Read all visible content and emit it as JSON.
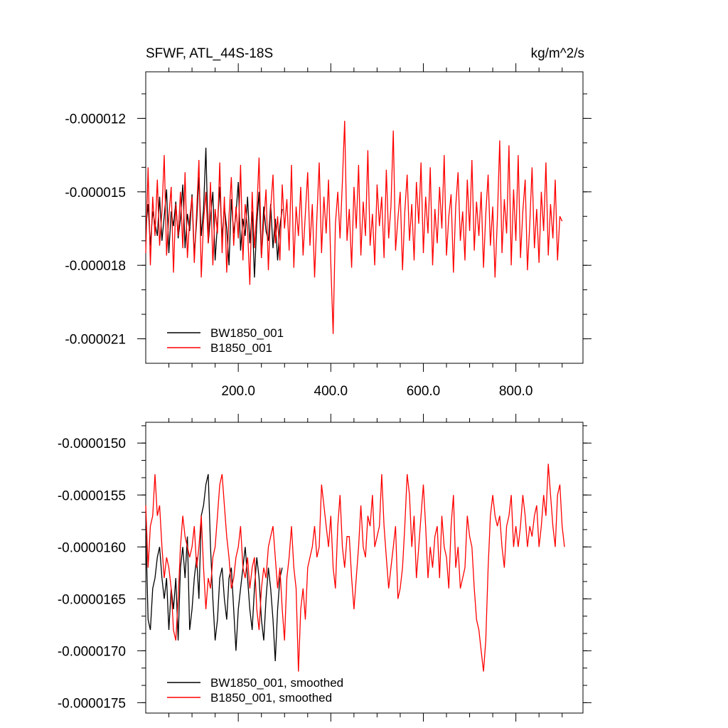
{
  "chart_data": [
    {
      "type": "line",
      "title_left": "SFWF, ATL_44S-18S",
      "title_right": "kg/m^2/s",
      "xlim": [
        0,
        945
      ],
      "ylim": [
        -2.2e-05,
        -1.01e-05
      ],
      "x_ticks": [
        200,
        400,
        600,
        800
      ],
      "x_tick_labels": [
        "200.0",
        "400.0",
        "600.0",
        "800.0"
      ],
      "y_ticks": [
        -1.2e-05,
        -1.5e-05,
        -1.8e-05,
        -2.1e-05
      ],
      "y_tick_labels": [
        "-0.000012",
        "-0.000015",
        "-0.000018",
        "-0.000021"
      ],
      "legend_position": "bottom-left",
      "series": [
        {
          "name": "BW1850_001",
          "color": "#000000",
          "x_step": 5,
          "values": [
            -1.65e-05,
            -1.55e-05,
            -1.72e-05,
            -1.58e-05,
            -1.63e-05,
            -1.68e-05,
            -1.52e-05,
            -1.7e-05,
            -1.6e-05,
            -1.49e-05,
            -1.75e-05,
            -1.58e-05,
            -1.64e-05,
            -1.54e-05,
            -1.69e-05,
            -1.61e-05,
            -1.47e-05,
            -1.73e-05,
            -1.59e-05,
            -1.66e-05,
            -1.51e-05,
            -1.76e-05,
            -1.62e-05,
            -1.44e-05,
            -1.68e-05,
            -1.57e-05,
            -1.32e-05,
            -1.71e-05,
            -1.6e-05,
            -1.5e-05,
            -1.78e-05,
            -1.63e-05,
            -1.48e-05,
            -1.69e-05,
            -1.56e-05,
            -1.65e-05,
            -1.8e-05,
            -1.53e-05,
            -1.67e-05,
            -1.59e-05,
            -1.46e-05,
            -1.74e-05,
            -1.61e-05,
            -1.68e-05,
            -1.52e-05,
            -1.71e-05,
            -1.58e-05,
            -1.85e-05,
            -1.63e-05,
            -1.5e-05,
            -1.77e-05,
            -1.56e-05,
            -1.66e-05,
            -1.7e-05,
            -1.55e-05,
            -1.73e-05,
            -1.61e-05,
            -1.78e-05,
            -1.64e-05,
            -1.57e-05
          ]
        },
        {
          "name": "B1850_001",
          "color": "#ff0000",
          "x_step": 5,
          "values": [
            -1.75e-05,
            -1.4e-05,
            -1.8e-05,
            -1.52e-05,
            -1.68e-05,
            -1.45e-05,
            -1.72e-05,
            -1.58e-05,
            -1.35e-05,
            -1.76e-05,
            -1.6e-05,
            -1.48e-05,
            -1.83e-05,
            -1.55e-05,
            -1.68e-05,
            -1.5e-05,
            -1.73e-05,
            -1.42e-05,
            -1.77e-05,
            -1.61e-05,
            -1.52e-05,
            -1.79e-05,
            -1.58e-05,
            -1.37e-05,
            -1.85e-05,
            -1.62e-05,
            -1.5e-05,
            -1.71e-05,
            -1.46e-05,
            -1.8e-05,
            -1.57e-05,
            -1.67e-05,
            -1.38e-05,
            -1.75e-05,
            -1.52e-05,
            -1.83e-05,
            -1.6e-05,
            -1.44e-05,
            -1.72e-05,
            -1.56e-05,
            -1.69e-05,
            -1.39e-05,
            -1.78e-05,
            -1.55e-05,
            -1.65e-05,
            -1.88e-05,
            -1.5e-05,
            -1.73e-05,
            -1.58e-05,
            -1.36e-05,
            -1.77e-05,
            -1.62e-05,
            -1.49e-05,
            -1.82e-05,
            -1.57e-05,
            -1.43e-05,
            -1.71e-05,
            -1.6e-05,
            -1.78e-05,
            -1.47e-05,
            -1.65e-05,
            -1.53e-05,
            -1.74e-05,
            -1.39e-05,
            -1.81e-05,
            -1.56e-05,
            -1.68e-05,
            -1.48e-05,
            -1.76e-05,
            -1.59e-05,
            -1.42e-05,
            -1.72e-05,
            -1.55e-05,
            -1.85e-05,
            -1.6e-05,
            -1.38e-05,
            -1.75e-05,
            -1.52e-05,
            -1.67e-05,
            -1.45e-05,
            -1.79e-05,
            -2.08e-05,
            -1.63e-05,
            -1.5e-05,
            -1.69e-05,
            -1.46e-05,
            -1.21e-05,
            -1.7e-05,
            -1.57e-05,
            -1.81e-05,
            -1.48e-05,
            -1.65e-05,
            -1.39e-05,
            -1.76e-05,
            -1.54e-05,
            -1.68e-05,
            -1.33e-05,
            -1.72e-05,
            -1.59e-05,
            -1.8e-05,
            -1.47e-05,
            -1.64e-05,
            -1.52e-05,
            -1.77e-05,
            -1.41e-05,
            -1.69e-05,
            -1.56e-05,
            -1.25e-05,
            -1.74e-05,
            -1.61e-05,
            -1.5e-05,
            -1.82e-05,
            -1.58e-05,
            -1.43e-05,
            -1.7e-05,
            -1.55e-05,
            -1.78e-05,
            -1.46e-05,
            -1.63e-05,
            -1.38e-05,
            -1.75e-05,
            -1.52e-05,
            -1.67e-05,
            -1.4e-05,
            -1.8e-05,
            -1.57e-05,
            -1.71e-05,
            -1.48e-05,
            -1.65e-05,
            -1.35e-05,
            -1.76e-05,
            -1.6e-05,
            -1.51e-05,
            -1.83e-05,
            -1.56e-05,
            -1.42e-05,
            -1.7e-05,
            -1.58e-05,
            -1.78e-05,
            -1.45e-05,
            -1.66e-05,
            -1.37e-05,
            -1.74e-05,
            -1.54e-05,
            -1.68e-05,
            -1.5e-05,
            -1.81e-05,
            -1.59e-05,
            -1.43e-05,
            -1.72e-05,
            -1.56e-05,
            -1.85e-05,
            -1.61e-05,
            -1.29e-05,
            -1.75e-05,
            -1.53e-05,
            -1.67e-05,
            -1.31e-05,
            -1.8e-05,
            -1.49e-05,
            -1.7e-05,
            -1.35e-05,
            -1.77e-05,
            -1.58e-05,
            -1.45e-05,
            -1.82e-05,
            -1.63e-05,
            -1.4e-05,
            -1.73e-05,
            -1.57e-05,
            -1.79e-05,
            -1.5e-05,
            -1.66e-05,
            -1.38e-05,
            -1.76e-05,
            -1.55e-05,
            -1.69e-05,
            -1.45e-05,
            -1.78e-05,
            -1.6e-05,
            -1.62e-05
          ]
        }
      ]
    },
    {
      "type": "line",
      "xlim": [
        0,
        945
      ],
      "ylim": [
        -1.76e-05,
        -1.48e-05
      ],
      "y_ticks": [
        -1.5e-05,
        -1.55e-05,
        -1.6e-05,
        -1.65e-05,
        -1.7e-05,
        -1.75e-05
      ],
      "y_tick_labels": [
        "-0.0000150",
        "-0.0000155",
        "-0.0000160",
        "-0.0000165",
        "-0.0000170",
        "-0.0000175"
      ],
      "legend_position": "bottom-left",
      "series": [
        {
          "name": "BW1850_001, smoothed",
          "color": "#000000",
          "x_step": 5,
          "values": [
            -1.58e-05,
            -1.67e-05,
            -1.68e-05,
            -1.64e-05,
            -1.63e-05,
            -1.61e-05,
            -1.6e-05,
            -1.63e-05,
            -1.65e-05,
            -1.63e-05,
            -1.68e-05,
            -1.64e-05,
            -1.66e-05,
            -1.63e-05,
            -1.69e-05,
            -1.62e-05,
            -1.6e-05,
            -1.63e-05,
            -1.59e-05,
            -1.68e-05,
            -1.66e-05,
            -1.63e-05,
            -1.61e-05,
            -1.65e-05,
            -1.57e-05,
            -1.56e-05,
            -1.54e-05,
            -1.53e-05,
            -1.6e-05,
            -1.65e-05,
            -1.69e-05,
            -1.67e-05,
            -1.63e-05,
            -1.62e-05,
            -1.65e-05,
            -1.67e-05,
            -1.63e-05,
            -1.62e-05,
            -1.66e-05,
            -1.7e-05,
            -1.66e-05,
            -1.64e-05,
            -1.62e-05,
            -1.6e-05,
            -1.63e-05,
            -1.66e-05,
            -1.68e-05,
            -1.64e-05,
            -1.61e-05,
            -1.63e-05,
            -1.67e-05,
            -1.69e-05,
            -1.65e-05,
            -1.62e-05,
            -1.64e-05,
            -1.67e-05,
            -1.71e-05,
            -1.66e-05,
            -1.63e-05,
            -1.62e-05
          ]
        },
        {
          "name": "B1850_001, smoothed",
          "color": "#ff0000",
          "x_step": 5,
          "values": [
            -1.56e-05,
            -1.62e-05,
            -1.58e-05,
            -1.57e-05,
            -1.53e-05,
            -1.57e-05,
            -1.56e-05,
            -1.6e-05,
            -1.63e-05,
            -1.61e-05,
            -1.62e-05,
            -1.64e-05,
            -1.68e-05,
            -1.69e-05,
            -1.65e-05,
            -1.6e-05,
            -1.57e-05,
            -1.59e-05,
            -1.6e-05,
            -1.61e-05,
            -1.6e-05,
            -1.58e-05,
            -1.62e-05,
            -1.6e-05,
            -1.57e-05,
            -1.62e-05,
            -1.66e-05,
            -1.63e-05,
            -1.64e-05,
            -1.61e-05,
            -1.6e-05,
            -1.57e-05,
            -1.54e-05,
            -1.53e-05,
            -1.56e-05,
            -1.59e-05,
            -1.61e-05,
            -1.64e-05,
            -1.63e-05,
            -1.61e-05,
            -1.6e-05,
            -1.58e-05,
            -1.62e-05,
            -1.63e-05,
            -1.61e-05,
            -1.64e-05,
            -1.62e-05,
            -1.61e-05,
            -1.66e-05,
            -1.68e-05,
            -1.64e-05,
            -1.62e-05,
            -1.63e-05,
            -1.6e-05,
            -1.59e-05,
            -1.58e-05,
            -1.61e-05,
            -1.64e-05,
            -1.62e-05,
            -1.66e-05,
            -1.69e-05,
            -1.63e-05,
            -1.61e-05,
            -1.58e-05,
            -1.62e-05,
            -1.64e-05,
            -1.72e-05,
            -1.66e-05,
            -1.64e-05,
            -1.67e-05,
            -1.62e-05,
            -1.61e-05,
            -1.6e-05,
            -1.58e-05,
            -1.61e-05,
            -1.6e-05,
            -1.54e-05,
            -1.56e-05,
            -1.58e-05,
            -1.6e-05,
            -1.57e-05,
            -1.62e-05,
            -1.64e-05,
            -1.58e-05,
            -1.55e-05,
            -1.6e-05,
            -1.62e-05,
            -1.59e-05,
            -1.59e-05,
            -1.63e-05,
            -1.66e-05,
            -1.63e-05,
            -1.6e-05,
            -1.56e-05,
            -1.6e-05,
            -1.61e-05,
            -1.57e-05,
            -1.58e-05,
            -1.55e-05,
            -1.6e-05,
            -1.59e-05,
            -1.58e-05,
            -1.53e-05,
            -1.58e-05,
            -1.61e-05,
            -1.64e-05,
            -1.62e-05,
            -1.6e-05,
            -1.58e-05,
            -1.65e-05,
            -1.64e-05,
            -1.62e-05,
            -1.58e-05,
            -1.53e-05,
            -1.55e-05,
            -1.6e-05,
            -1.57e-05,
            -1.63e-05,
            -1.6e-05,
            -1.57e-05,
            -1.54e-05,
            -1.58e-05,
            -1.63e-05,
            -1.6e-05,
            -1.62e-05,
            -1.59e-05,
            -1.58e-05,
            -1.63e-05,
            -1.57e-05,
            -1.6e-05,
            -1.61e-05,
            -1.64e-05,
            -1.58e-05,
            -1.55e-05,
            -1.62e-05,
            -1.6e-05,
            -1.64e-05,
            -1.63e-05,
            -1.62e-05,
            -1.57e-05,
            -1.59e-05,
            -1.6e-05,
            -1.64e-05,
            -1.67e-05,
            -1.68e-05,
            -1.7e-05,
            -1.72e-05,
            -1.69e-05,
            -1.62e-05,
            -1.57e-05,
            -1.55e-05,
            -1.57e-05,
            -1.58e-05,
            -1.57e-05,
            -1.6e-05,
            -1.62e-05,
            -1.58e-05,
            -1.57e-05,
            -1.55e-05,
            -1.6e-05,
            -1.58e-05,
            -1.6e-05,
            -1.58e-05,
            -1.55e-05,
            -1.57e-05,
            -1.6e-05,
            -1.58e-05,
            -1.59e-05,
            -1.57e-05,
            -1.56e-05,
            -1.6e-05,
            -1.58e-05,
            -1.55e-05,
            -1.57e-05,
            -1.52e-05,
            -1.55e-05,
            -1.58e-05,
            -1.6e-05,
            -1.55e-05,
            -1.54e-05,
            -1.58e-05,
            -1.6e-05
          ]
        }
      ]
    }
  ]
}
